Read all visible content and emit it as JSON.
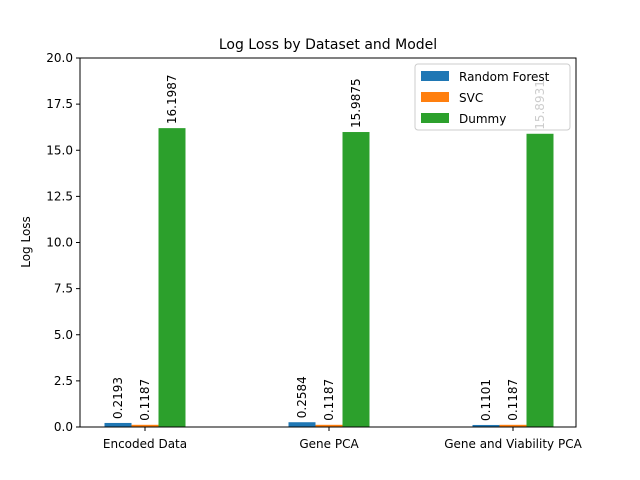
{
  "chart_data": {
    "type": "bar",
    "title": "Log Loss by Dataset and Model",
    "xlabel": "",
    "ylabel": "Log Loss",
    "categories": [
      "Encoded Data",
      "Gene PCA",
      "Gene and Viability PCA"
    ],
    "series": [
      {
        "name": "Random Forest",
        "color": "#1f77b4",
        "values": [
          0.2193,
          0.2584,
          0.1101
        ],
        "labels": [
          "0.2193",
          "0.2584",
          "0.1101"
        ]
      },
      {
        "name": "SVC",
        "color": "#ff7f0e",
        "values": [
          0.1187,
          0.1187,
          0.1187
        ],
        "labels": [
          "0.1187",
          "0.1187",
          "0.1187"
        ]
      },
      {
        "name": "Dummy",
        "color": "#2ca02c",
        "values": [
          16.1987,
          15.9875,
          15.8931
        ],
        "labels": [
          "16.1987",
          "15.9875",
          "15.8931"
        ]
      }
    ],
    "ylim": [
      0,
      20
    ],
    "yticks": [
      "0.0",
      "2.5",
      "5.0",
      "7.5",
      "10.0",
      "12.5",
      "15.0",
      "17.5",
      "20.0"
    ],
    "grid": false,
    "legend": "top-right"
  }
}
